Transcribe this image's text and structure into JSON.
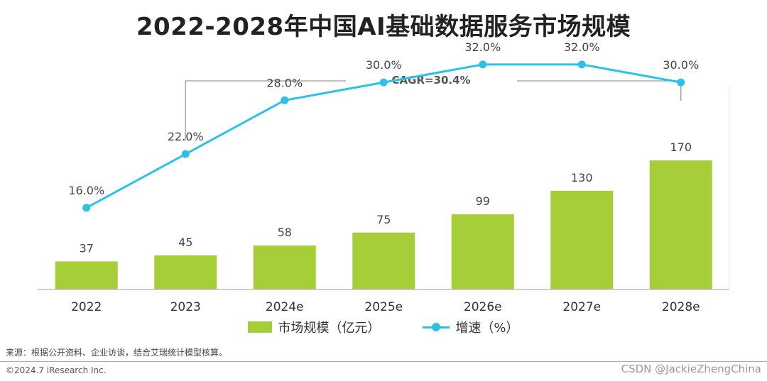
{
  "title": "2022-2028年中国AI基础数据服务市场规模",
  "chart_data": {
    "type": "bar+line",
    "categories": [
      "2022",
      "2023",
      "2024e",
      "2025e",
      "2026e",
      "2027e",
      "2028e"
    ],
    "series": [
      {
        "name": "市场规模（亿元）",
        "type": "bar",
        "values": [
          37,
          45,
          58,
          75,
          99,
          130,
          170
        ],
        "color": "#a6ce39"
      },
      {
        "name": "增速（%）",
        "type": "line",
        "values": [
          16.0,
          22.0,
          28.0,
          30.0,
          32.0,
          32.0,
          30.0
        ],
        "labels": [
          "16.0%",
          "22.0%",
          "28.0%",
          "30.0%",
          "32.0%",
          "32.0%",
          "30.0%"
        ],
        "color": "#2ec0e6"
      }
    ],
    "annotation": "CAGR=30.4%",
    "grid": false
  },
  "source": "来源：根据公开资料、企业访谈，结合艾瑞统计模型核算。",
  "copyright": "©2024.7 iResearch Inc.",
  "watermark": "CSDN @JackieZhengChina"
}
